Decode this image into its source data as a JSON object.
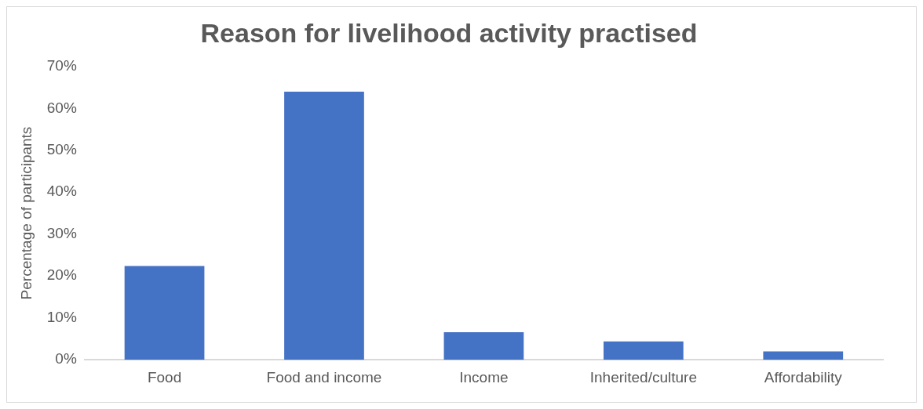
{
  "chart_data": {
    "type": "bar",
    "title": "Reason for livelihood activity practised",
    "ylabel": "Percentage of participants",
    "categories": [
      "Food",
      "Food and income",
      "Income",
      "Inherited/culture",
      "Affordability"
    ],
    "values": [
      22.4,
      64.0,
      6.6,
      4.4,
      2.0
    ],
    "color": "#4472c4",
    "ylim": [
      0,
      70
    ],
    "yticks": [
      {
        "value": 0,
        "label": "0%"
      },
      {
        "value": 10,
        "label": "10%"
      },
      {
        "value": 20,
        "label": "20%"
      },
      {
        "value": 30,
        "label": "30%"
      },
      {
        "value": 40,
        "label": "40%"
      },
      {
        "value": 50,
        "label": "50%"
      },
      {
        "value": 60,
        "label": "60%"
      },
      {
        "value": 70,
        "label": "70%"
      }
    ],
    "grid": false,
    "legend": false
  }
}
